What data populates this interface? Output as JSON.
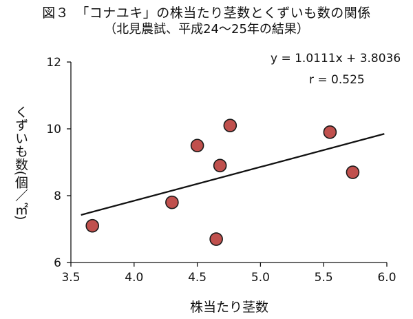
{
  "chart_data": {
    "type": "scatter",
    "title": "図３　「コナユキ」の株当たり茎数とくずいも数の関係",
    "subtitle": "（北見農試、平成24～25年の結果）",
    "xlabel": "株当たり茎数",
    "ylabel": "くずいも数(個／㎡)",
    "xlim": [
      3.5,
      6.0
    ],
    "ylim": [
      6,
      12
    ],
    "xticks": [
      "3.5",
      "4.0",
      "4.5",
      "5.0",
      "5.5",
      "6.0"
    ],
    "yticks": [
      "6",
      "8",
      "10",
      "12"
    ],
    "points": [
      {
        "x": 3.67,
        "y": 7.1
      },
      {
        "x": 4.3,
        "y": 7.8
      },
      {
        "x": 4.5,
        "y": 9.5
      },
      {
        "x": 4.65,
        "y": 6.7
      },
      {
        "x": 4.68,
        "y": 8.9
      },
      {
        "x": 4.76,
        "y": 10.1
      },
      {
        "x": 5.55,
        "y": 9.9
      },
      {
        "x": 5.73,
        "y": 8.7
      }
    ],
    "trendline": {
      "slope": 1.0111,
      "intercept": 3.8036,
      "x_range": [
        3.58,
        5.98
      ]
    },
    "equation": "y = 1.0111x + 3.8036",
    "r_text": "r = 0.525",
    "marker_color": "#c0504d",
    "marker_edge": "#1a1a1a",
    "grid": false
  }
}
